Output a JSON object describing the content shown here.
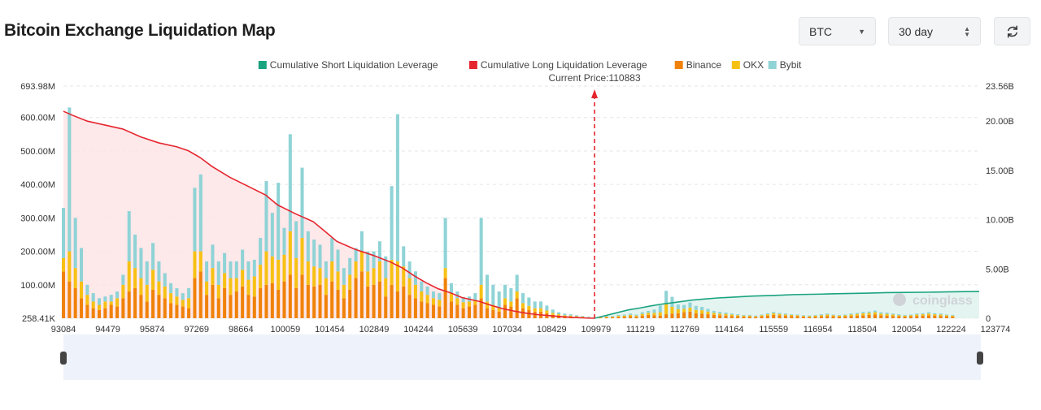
{
  "page": {
    "title": "Bitcoin Exchange Liquidation Map"
  },
  "controls": {
    "symbol": "BTC",
    "range": "30 day",
    "refresh_icon": "refresh-icon",
    "symbol_caret_icon": "chevron-down-icon",
    "range_stepper_icon": "up-down-icon"
  },
  "watermark": {
    "text": "coinglass"
  },
  "chart_data": {
    "type": "bar",
    "title": "Bitcoin Exchange Liquidation Map",
    "current_price_label": "Current Price:110883",
    "current_price": 110883,
    "legend": [
      {
        "name": "Cumulative Short Liquidation Leverage",
        "color": "#1aa37f"
      },
      {
        "name": "Cumulative Long Liquidation Leverage",
        "color": "#e5262f"
      },
      {
        "name": "Binance",
        "color": "#f08209"
      },
      {
        "name": "OKX",
        "color": "#f7c114"
      },
      {
        "name": "Bybit",
        "color": "#8fd3d6"
      }
    ],
    "x_tick_labels": [
      "93084",
      "94479",
      "95874",
      "97269",
      "98664",
      "100059",
      "101454",
      "102849",
      "104244",
      "105639",
      "107034",
      "108429",
      "109979",
      "111219",
      "112769",
      "114164",
      "115559",
      "116954",
      "118504",
      "120054",
      "122224",
      "123774"
    ],
    "y_left_labels": [
      "258.41K",
      "100.00M",
      "200.00M",
      "300.00M",
      "400.00M",
      "500.00M",
      "600.00M",
      "693.98M"
    ],
    "y_left_values": [
      0.26,
      100,
      200,
      300,
      400,
      500,
      600,
      693.98
    ],
    "y_left_unit": "M",
    "y_right_labels": [
      "0",
      "5.00B",
      "10.00B",
      "15.00B",
      "20.00B",
      "23.56B"
    ],
    "y_right_values": [
      0,
      5,
      10,
      15,
      20,
      23.56
    ],
    "y_right_unit": "B",
    "x_range": [
      93084,
      123774
    ],
    "bars": {
      "x": [
        93084,
        93284,
        93484,
        93684,
        93884,
        94084,
        94284,
        94484,
        94684,
        94884,
        95084,
        95284,
        95484,
        95684,
        95884,
        96084,
        96284,
        96484,
        96684,
        96884,
        97084,
        97284,
        97484,
        97684,
        97884,
        98084,
        98284,
        98484,
        98684,
        98884,
        99084,
        99284,
        99484,
        99684,
        99884,
        100084,
        100284,
        100484,
        100684,
        100884,
        101084,
        101284,
        101484,
        101684,
        101884,
        102084,
        102284,
        102484,
        102684,
        102884,
        103084,
        103284,
        103484,
        103684,
        103884,
        104084,
        104284,
        104484,
        104684,
        104884,
        105084,
        105284,
        105484,
        105684,
        105884,
        106084,
        106284,
        106484,
        106684,
        106884,
        107084,
        107284,
        107484,
        107684,
        107884,
        108084,
        108284,
        108484,
        108684,
        108884,
        109084,
        109284,
        109484,
        109684,
        109884,
        110084,
        110284,
        110484,
        110684,
        110884,
        111084,
        111284,
        111484,
        111684,
        111884,
        112084,
        112284,
        112484,
        112684,
        112884,
        113084,
        113284,
        113484,
        113684,
        113884,
        114084,
        114284,
        114484,
        114684,
        114884,
        115084,
        115284,
        115484,
        115684,
        115884,
        116084,
        116284,
        116484,
        116684,
        116884,
        117084,
        117284,
        117484,
        117684,
        117884,
        118084,
        118284,
        118484,
        118684,
        118884,
        119084,
        119284,
        119484,
        119684,
        119884,
        120084,
        120284,
        120484,
        120684,
        120884,
        121084,
        121284,
        121484,
        121684,
        121884,
        122084,
        122284,
        122484,
        122684,
        122884,
        123084,
        123284,
        123484,
        123684
      ],
      "binance": [
        140,
        110,
        90,
        60,
        40,
        30,
        25,
        30,
        40,
        35,
        60,
        80,
        90,
        70,
        50,
        85,
        70,
        60,
        45,
        40,
        35,
        30,
        120,
        140,
        70,
        100,
        60,
        90,
        70,
        80,
        95,
        70,
        65,
        90,
        100,
        105,
        85,
        110,
        130,
        90,
        130,
        100,
        95,
        100,
        70,
        110,
        85,
        60,
        85,
        120,
        140,
        95,
        100,
        110,
        65,
        100,
        80,
        95,
        70,
        60,
        50,
        45,
        40,
        35,
        120,
        50,
        40,
        30,
        35,
        40,
        60,
        30,
        25,
        20,
        40,
        35,
        60,
        30,
        25,
        20,
        20,
        15,
        10,
        8,
        6,
        5,
        4,
        3,
        2,
        1,
        2,
        3,
        3,
        4,
        5,
        6,
        5,
        8,
        10,
        9,
        8,
        12,
        14,
        15,
        18,
        20,
        15,
        14,
        12,
        10,
        9,
        8,
        7,
        6,
        5,
        5,
        4,
        6,
        8,
        10,
        9,
        8,
        7,
        6,
        5,
        4,
        5,
        6,
        7,
        6,
        5,
        6,
        7,
        8,
        9,
        10,
        11,
        9,
        8,
        7,
        6,
        5,
        6,
        7,
        8,
        9,
        8,
        7,
        6,
        5
      ],
      "okx": [
        40,
        90,
        60,
        50,
        30,
        20,
        15,
        20,
        10,
        25,
        40,
        90,
        60,
        50,
        50,
        60,
        40,
        35,
        30,
        25,
        20,
        30,
        80,
        60,
        40,
        50,
        40,
        45,
        50,
        40,
        50,
        45,
        60,
        70,
        100,
        80,
        90,
        80,
        130,
        90,
        110,
        70,
        60,
        50,
        50,
        60,
        55,
        40,
        45,
        50,
        60,
        45,
        50,
        60,
        55,
        75,
        90,
        60,
        50,
        40,
        30,
        25,
        20,
        20,
        30,
        25,
        20,
        18,
        15,
        15,
        40,
        20,
        15,
        10,
        20,
        15,
        20,
        15,
        12,
        10,
        10,
        8,
        6,
        4,
        3,
        3,
        2,
        2,
        1,
        1,
        1,
        2,
        2,
        3,
        3,
        4,
        3,
        5,
        6,
        7,
        10,
        30,
        20,
        12,
        10,
        12,
        10,
        10,
        8,
        6,
        5,
        5,
        4,
        3,
        3,
        3,
        2,
        3,
        4,
        5,
        4,
        3,
        3,
        3,
        2,
        2,
        3,
        3,
        4,
        3,
        3,
        3,
        4,
        5,
        6,
        6,
        7,
        5,
        5,
        4,
        3,
        3,
        3,
        4,
        4,
        5,
        4,
        4,
        3,
        3
      ],
      "bybit": [
        150,
        430,
        150,
        100,
        30,
        25,
        20,
        15,
        20,
        20,
        30,
        150,
        100,
        90,
        70,
        80,
        60,
        40,
        30,
        25,
        20,
        30,
        190,
        230,
        60,
        70,
        70,
        60,
        50,
        50,
        60,
        55,
        50,
        80,
        210,
        130,
        230,
        80,
        290,
        110,
        210,
        90,
        80,
        70,
        50,
        70,
        65,
        50,
        50,
        40,
        60,
        60,
        50,
        60,
        65,
        220,
        440,
        60,
        50,
        40,
        30,
        25,
        20,
        20,
        150,
        30,
        20,
        15,
        15,
        20,
        200,
        80,
        60,
        50,
        40,
        40,
        50,
        30,
        25,
        20,
        20,
        15,
        10,
        6,
        5,
        4,
        3,
        2,
        2,
        1,
        1,
        2,
        2,
        3,
        3,
        4,
        3,
        5,
        6,
        10,
        20,
        40,
        30,
        14,
        12,
        15,
        12,
        10,
        8,
        6,
        5,
        4,
        3,
        3,
        2,
        2,
        2,
        2,
        3,
        4,
        3,
        3,
        2,
        2,
        2,
        2,
        2,
        3,
        3,
        2,
        2,
        2,
        3,
        3,
        4,
        4,
        5,
        4,
        4,
        3,
        3,
        2,
        2,
        3,
        3,
        4,
        3,
        3,
        2,
        2
      ]
    },
    "long_cumulative": {
      "x": [
        93084,
        93384,
        93884,
        94479,
        95074,
        95674,
        96274,
        96874,
        97269,
        97669,
        98064,
        98664,
        99264,
        99864,
        100259,
        100859,
        101454,
        101854,
        102249,
        102849,
        103449,
        104049,
        104444,
        104844,
        105239,
        105639,
        106039,
        106439,
        107034,
        107434,
        107834,
        108234,
        108629,
        109029,
        109429,
        109829,
        110229,
        110629,
        110883
      ],
      "values_B": [
        21.0,
        20.6,
        20.0,
        19.6,
        19.2,
        18.4,
        17.8,
        17.4,
        17.0,
        16.3,
        15.4,
        14.3,
        13.4,
        12.5,
        11.5,
        10.6,
        9.8,
        8.8,
        7.8,
        7.0,
        6.4,
        5.7,
        5.1,
        4.3,
        3.6,
        3.0,
        2.6,
        2.1,
        1.7,
        1.3,
        0.95,
        0.7,
        0.5,
        0.35,
        0.25,
        0.15,
        0.08,
        0.02,
        0.0
      ]
    },
    "short_cumulative": {
      "x": [
        110883,
        111219,
        111619,
        112019,
        112419,
        112769,
        113169,
        113569,
        114164,
        114564,
        114964,
        115559,
        116159,
        116954,
        117554,
        118504,
        119104,
        120054,
        120654,
        121254,
        122224,
        122824,
        123774
      ],
      "values_B": [
        0.0,
        0.25,
        0.55,
        0.85,
        1.05,
        1.25,
        1.45,
        1.6,
        1.85,
        1.95,
        2.05,
        2.15,
        2.25,
        2.32,
        2.4,
        2.45,
        2.5,
        2.55,
        2.6,
        2.62,
        2.65,
        2.68,
        2.72
      ]
    }
  }
}
